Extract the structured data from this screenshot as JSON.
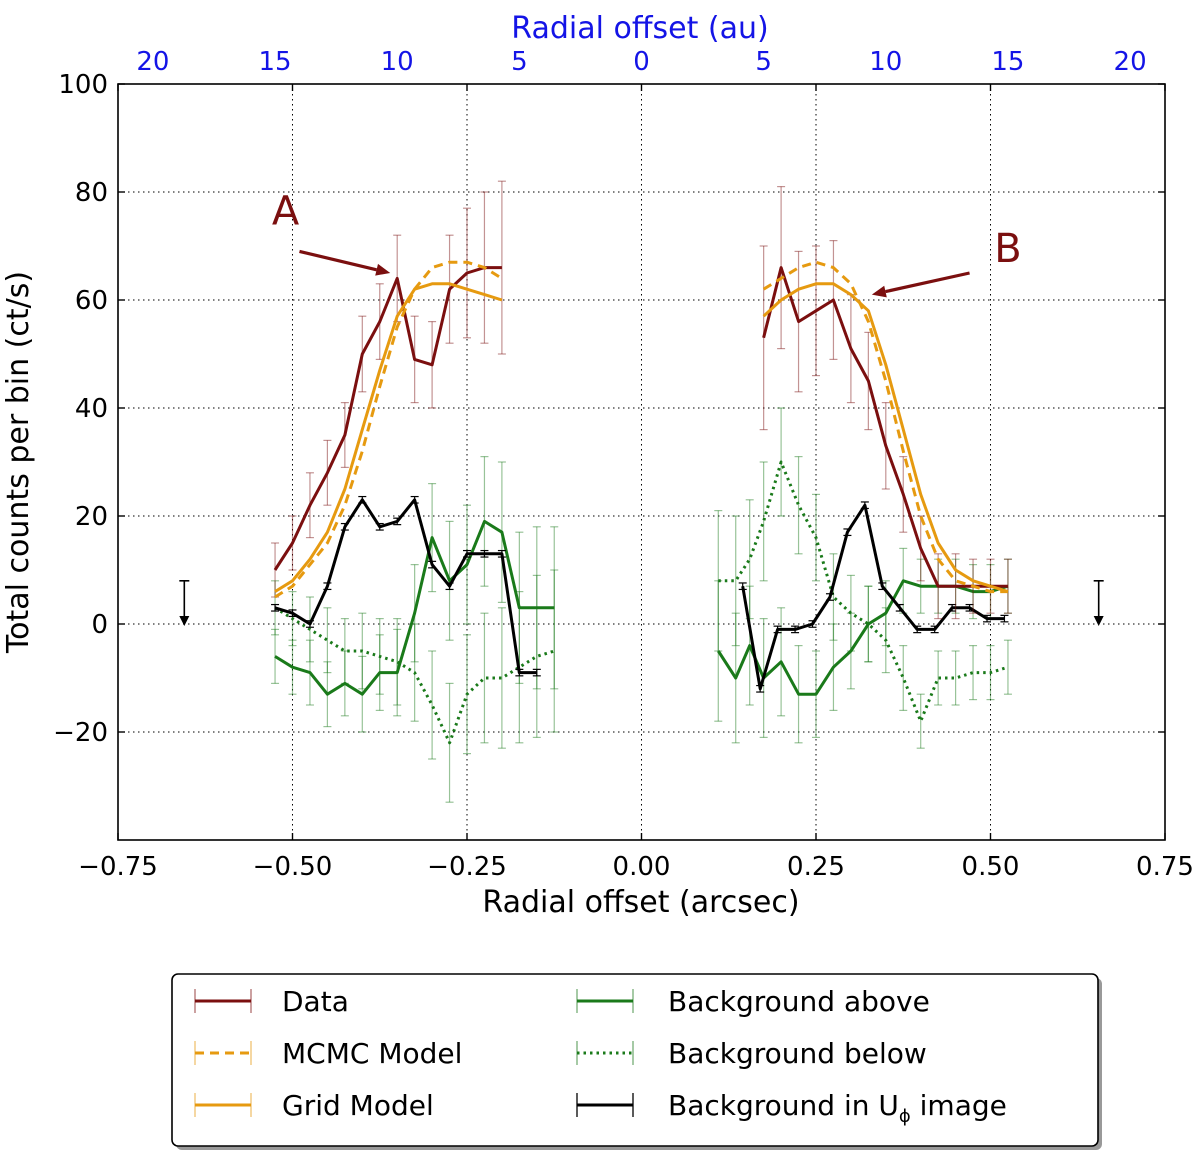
{
  "chart_data": {
    "type": "line",
    "title": "",
    "xlabel": "Radial offset (arcsec)",
    "ylabel": "Total counts per bin (ct/s)",
    "top_axis_label": "Radial offset (au)",
    "xlim": [
      -0.75,
      0.75
    ],
    "ylim": [
      -40,
      100
    ],
    "x_ticks": [
      -0.75,
      -0.5,
      -0.25,
      0.0,
      0.25,
      0.5,
      0.75
    ],
    "x_tick_labels": [
      "−0.75",
      "−0.50",
      "−0.25",
      "0.00",
      "0.25",
      "0.50",
      "0.75"
    ],
    "y_ticks": [
      -20,
      0,
      20,
      40,
      60,
      80,
      100
    ],
    "y_tick_labels": [
      "−20",
      "0",
      "20",
      "40",
      "60",
      "80",
      "100"
    ],
    "x_grid": [
      -0.5,
      -0.25,
      0.0,
      0.25,
      0.5
    ],
    "y_grid": [
      -20,
      0,
      20,
      40,
      60,
      80
    ],
    "top_ticks": [
      {
        "x": -0.7,
        "label": "20"
      },
      {
        "x": -0.525,
        "label": "15"
      },
      {
        "x": -0.35,
        "label": "10"
      },
      {
        "x": -0.175,
        "label": "5"
      },
      {
        "x": 0.0,
        "label": "0"
      },
      {
        "x": 0.175,
        "label": "5"
      },
      {
        "x": 0.35,
        "label": "10"
      },
      {
        "x": 0.525,
        "label": "15"
      },
      {
        "x": 0.7,
        "label": "20"
      }
    ],
    "colors": {
      "data": "#7b0f0f",
      "model": "#e69a10",
      "bg_green": "#1a7a1a",
      "uphi": "#000000",
      "top_axis": "#1414e6",
      "annotation": "#7b0f0f"
    },
    "series": [
      {
        "name": "Data",
        "color": "#7b0f0f",
        "style": "solid",
        "segments": [
          {
            "x": [
              -0.525,
              -0.5,
              -0.475,
              -0.45,
              -0.425,
              -0.4,
              -0.375,
              -0.35,
              -0.325,
              -0.3,
              -0.275,
              -0.25,
              -0.225,
              -0.2
            ],
            "y": [
              10,
              15,
              22,
              28,
              35,
              50,
              56,
              64,
              49,
              48,
              62,
              65,
              66,
              66
            ],
            "err": [
              5,
              5,
              6,
              6,
              6,
              7,
              7,
              8,
              8,
              8,
              10,
              12,
              14,
              16
            ]
          },
          {
            "x": [
              0.175,
              0.2,
              0.225,
              0.25,
              0.275,
              0.3,
              0.325,
              0.35,
              0.375,
              0.4,
              0.425,
              0.45,
              0.475,
              0.5,
              0.525
            ],
            "y": [
              53,
              66,
              56,
              58,
              60,
              51,
              45,
              33,
              24,
              14,
              7,
              7,
              7,
              7,
              7
            ],
            "err": [
              17,
              15,
              13,
              12,
              11,
              10,
              9,
              8,
              7,
              6,
              6,
              6,
              5,
              5,
              5
            ]
          }
        ]
      },
      {
        "name": "MCMC Model",
        "color": "#e69a10",
        "style": "dashed",
        "segments": [
          {
            "x": [
              -0.525,
              -0.5,
              -0.475,
              -0.45,
              -0.425,
              -0.4,
              -0.375,
              -0.35,
              -0.325,
              -0.3,
              -0.275,
              -0.25,
              -0.225,
              -0.2
            ],
            "y": [
              5,
              7,
              11,
              15,
              22,
              32,
              44,
              55,
              62,
              66,
              67,
              67,
              66,
              64
            ]
          },
          {
            "x": [
              0.175,
              0.2,
              0.225,
              0.25,
              0.275,
              0.3,
              0.325,
              0.35,
              0.375,
              0.4,
              0.425,
              0.45,
              0.475,
              0.5,
              0.525
            ],
            "y": [
              62,
              64,
              66,
              67,
              66,
              63,
              56,
              45,
              32,
              20,
              12,
              8,
              7,
              6,
              6
            ]
          }
        ]
      },
      {
        "name": "Grid Model",
        "color": "#e69a10",
        "style": "solid",
        "segments": [
          {
            "x": [
              -0.525,
              -0.5,
              -0.475,
              -0.45,
              -0.425,
              -0.4,
              -0.375,
              -0.35,
              -0.325,
              -0.3,
              -0.275,
              -0.25,
              -0.225,
              -0.2
            ],
            "y": [
              6,
              8,
              12,
              17,
              25,
              36,
              47,
              57,
              62,
              63,
              63,
              62,
              61,
              60
            ]
          },
          {
            "x": [
              0.175,
              0.2,
              0.225,
              0.25,
              0.275,
              0.3,
              0.325,
              0.35,
              0.375,
              0.4,
              0.425,
              0.45,
              0.475,
              0.5,
              0.525
            ],
            "y": [
              57,
              60,
              62,
              63,
              63,
              61,
              58,
              48,
              36,
              24,
              15,
              10,
              8,
              7,
              6
            ]
          }
        ]
      },
      {
        "name": "Background above",
        "color": "#1a7a1a",
        "style": "solid",
        "segments": [
          {
            "x": [
              -0.525,
              -0.5,
              -0.475,
              -0.45,
              -0.425,
              -0.4,
              -0.375,
              -0.35,
              -0.325,
              -0.3,
              -0.275,
              -0.25,
              -0.225,
              -0.2,
              -0.175,
              -0.15,
              -0.125
            ],
            "y": [
              -6,
              -8,
              -9,
              -13,
              -11,
              -13,
              -9,
              -9,
              2,
              16,
              8,
              11,
              19,
              17,
              3,
              3,
              3
            ],
            "err": [
              5,
              5,
              6,
              6,
              6,
              7,
              7,
              8,
              9,
              10,
              11,
              11,
              12,
              13,
              14,
              15,
              15
            ]
          },
          {
            "x": [
              0.11,
              0.135,
              0.155,
              0.175,
              0.2,
              0.225,
              0.25,
              0.275,
              0.3,
              0.325,
              0.35,
              0.375,
              0.4,
              0.425,
              0.45,
              0.475,
              0.5,
              0.525
            ],
            "y": [
              -5,
              -10,
              -4,
              -10,
              -7,
              -13,
              -13,
              -8,
              -5,
              0,
              2,
              8,
              7,
              7,
              7,
              6,
              6,
              7
            ],
            "err": [
              13,
              12,
              11,
              11,
              10,
              9,
              8,
              8,
              7,
              7,
              6,
              6,
              5,
              5,
              5,
              5,
              5,
              5
            ]
          }
        ]
      },
      {
        "name": "Background below",
        "color": "#1a7a1a",
        "style": "dotted",
        "segments": [
          {
            "x": [
              -0.525,
              -0.5,
              -0.475,
              -0.45,
              -0.425,
              -0.4,
              -0.375,
              -0.35,
              -0.325,
              -0.3,
              -0.275,
              -0.25,
              -0.225,
              -0.2,
              -0.175,
              -0.15,
              -0.125
            ],
            "y": [
              3,
              1,
              -1,
              -3,
              -5,
              -5,
              -6,
              -7,
              -9,
              -15,
              -22,
              -13,
              -10,
              -10,
              -8,
              -6,
              -5
            ],
            "err": [
              5,
              5,
              6,
              6,
              6,
              7,
              7,
              8,
              9,
              10,
              11,
              11,
              12,
              13,
              14,
              15,
              15
            ]
          },
          {
            "x": [
              0.11,
              0.135,
              0.155,
              0.175,
              0.2,
              0.225,
              0.25,
              0.275,
              0.3,
              0.325,
              0.35,
              0.375,
              0.4,
              0.425,
              0.45,
              0.475,
              0.5,
              0.525
            ],
            "y": [
              8,
              8,
              12,
              19,
              30,
              22,
              16,
              5,
              2,
              0,
              -3,
              -10,
              -18,
              -10,
              -10,
              -9,
              -9,
              -8
            ],
            "err": [
              13,
              12,
              11,
              11,
              10,
              9,
              8,
              8,
              7,
              7,
              6,
              6,
              5,
              5,
              5,
              5,
              5,
              5
            ]
          }
        ]
      },
      {
        "name": "Background in Uφ image",
        "color": "#000000",
        "style": "solid",
        "segments": [
          {
            "x": [
              -0.525,
              -0.5,
              -0.475,
              -0.45,
              -0.425,
              -0.4,
              -0.375,
              -0.35,
              -0.325,
              -0.3,
              -0.275,
              -0.25,
              -0.225,
              -0.2,
              -0.175,
              -0.15
            ],
            "y": [
              3,
              2,
              0,
              7,
              18,
              23,
              18,
              19,
              23,
              11,
              7,
              13,
              13,
              13,
              -9,
              -9
            ],
            "err": [
              0.6,
              0.6,
              0.6,
              0.6,
              0.6,
              0.6,
              0.6,
              0.6,
              0.6,
              0.6,
              0.6,
              0.6,
              0.6,
              0.6,
              0.6,
              0.6
            ]
          },
          {
            "x": [
              0.145,
              0.17,
              0.195,
              0.22,
              0.245,
              0.27,
              0.295,
              0.32,
              0.345,
              0.37,
              0.395,
              0.42,
              0.445,
              0.47,
              0.495,
              0.52
            ],
            "y": [
              7,
              -12,
              -1,
              -1,
              0,
              5,
              17,
              22,
              7,
              3,
              -1,
              -1,
              3,
              3,
              1,
              1
            ],
            "err": [
              0.6,
              0.6,
              0.6,
              0.6,
              0.6,
              0.6,
              0.6,
              0.6,
              0.6,
              0.6,
              0.6,
              0.6,
              0.6,
              0.6,
              0.6,
              0.6
            ]
          }
        ]
      }
    ],
    "upper_limit_markers": [
      {
        "x": -0.655,
        "y_from": 8,
        "y_to": 0
      },
      {
        "x": 0.655,
        "y_from": 8,
        "y_to": 0
      }
    ],
    "annotations": [
      {
        "text": "A",
        "text_x": -0.51,
        "text_y": 74,
        "arrow_from": [
          -0.49,
          69
        ],
        "arrow_to": [
          -0.36,
          65
        ]
      },
      {
        "text": "B",
        "text_x": 0.525,
        "text_y": 67,
        "arrow_from": [
          0.47,
          65
        ],
        "arrow_to": [
          0.33,
          61
        ]
      }
    ],
    "legend": {
      "placement": "below-plot",
      "entries": [
        {
          "label": "Data",
          "color": "#7b0f0f",
          "style": "solid"
        },
        {
          "label": "MCMC Model",
          "color": "#e69a10",
          "style": "dashed"
        },
        {
          "label": "Grid Model",
          "color": "#e69a10",
          "style": "solid"
        },
        {
          "label": "Background above",
          "color": "#1a7a1a",
          "style": "solid"
        },
        {
          "label": "Background below",
          "color": "#1a7a1a",
          "style": "dotted"
        },
        {
          "label": "Background in U",
          "subscript": "ϕ",
          "suffix": " image",
          "color": "#000000",
          "style": "solid"
        }
      ]
    }
  }
}
